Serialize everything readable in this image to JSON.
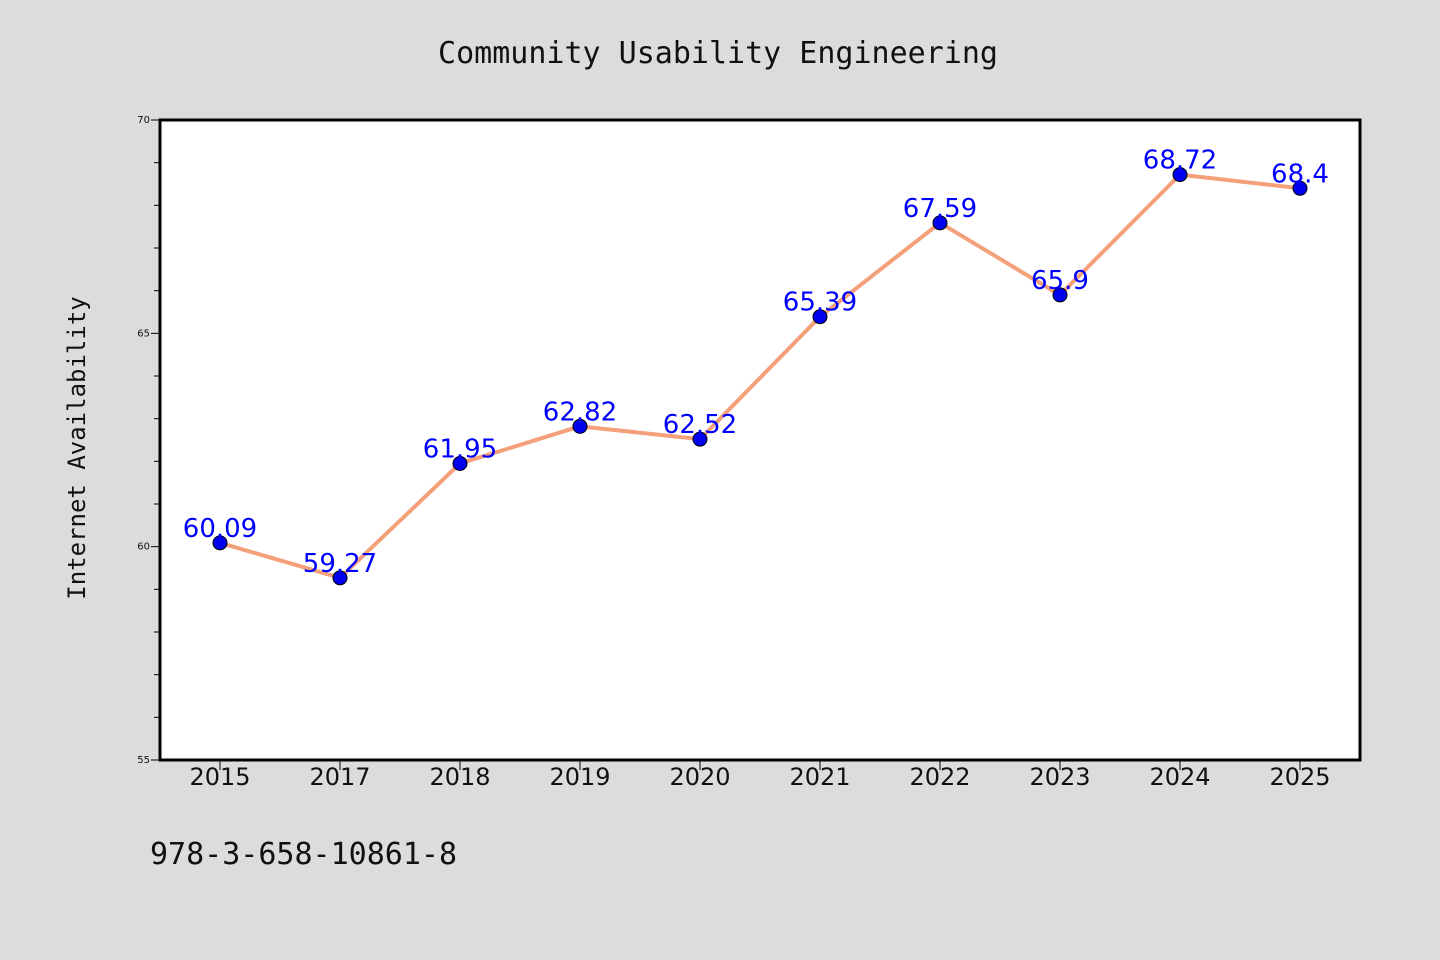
{
  "chart_data": {
    "type": "line",
    "title": "Community Usability Engineering",
    "xlabel": "",
    "ylabel": "Internet Availability",
    "categories": [
      "2015",
      "2017",
      "2018",
      "2019",
      "2020",
      "2021",
      "2022",
      "2023",
      "2024",
      "2025"
    ],
    "series": [
      {
        "values": [
          60.09,
          59.27,
          61.95,
          62.82,
          62.52,
          65.39,
          67.59,
          65.9,
          68.72,
          68.4
        ],
        "data_labels": [
          "60.09",
          "59.27",
          "61.95",
          "62.82",
          "62.52",
          "65.39",
          "67.59",
          "65.9",
          "68.72",
          "68.4"
        ],
        "line_color": "#f4a07a",
        "marker_color": "#0000ee",
        "label_color": "#0000ff"
      }
    ],
    "ylim": [
      55,
      70
    ],
    "y_major_ticks": [
      55,
      60,
      65,
      70
    ],
    "y_minor_step": 1,
    "grid": false,
    "legend": "none"
  },
  "footer": {
    "isbn": "978-3-658-10861-8"
  },
  "colors": {
    "background": "#dcdcdc",
    "plot_background": "#ffffff",
    "axis": "#000000"
  }
}
